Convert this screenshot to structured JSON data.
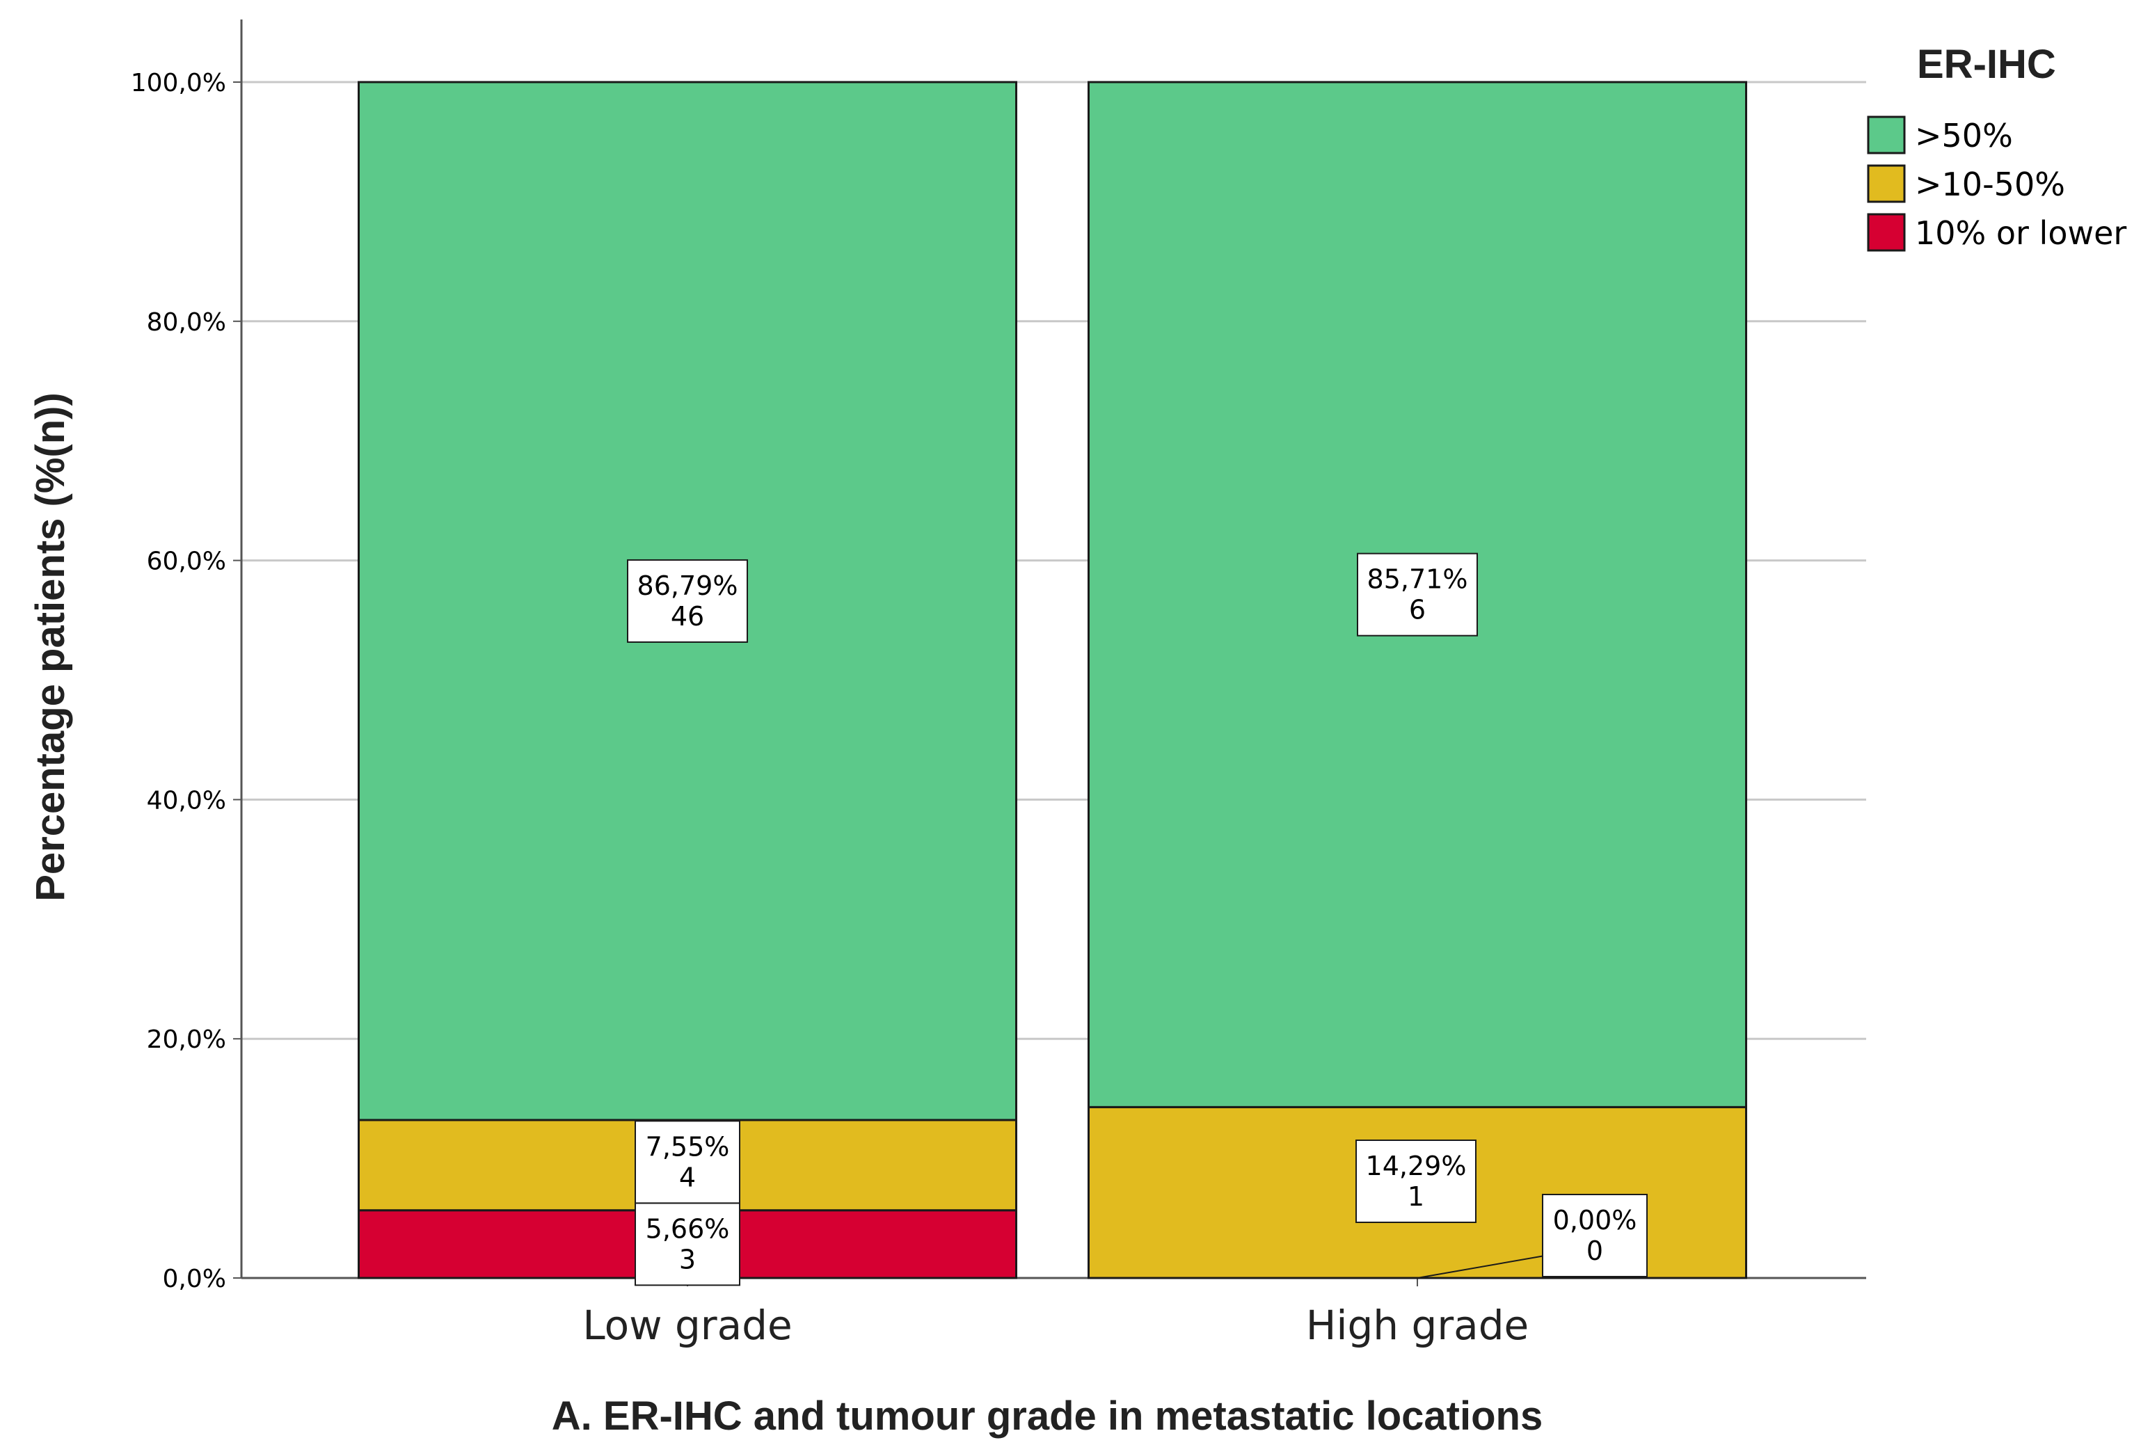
{
  "chart_data": {
    "type": "bar",
    "stacked": true,
    "percent": true,
    "title": "A. ER-IHC and tumour grade in metastatic locations",
    "xlabel": "",
    "ylabel": "Percentage patients (%(n))",
    "ylim": [
      0,
      100
    ],
    "yticks": [
      "0,0%",
      "20,0%",
      "40,0%",
      "60,0%",
      "80,0%",
      "100,0%"
    ],
    "grid": true,
    "categories": [
      "Low grade",
      "High grade"
    ],
    "legend": {
      "title": "ER-IHC",
      "placement": "top-right"
    },
    "series": [
      {
        "name": "10% or lower",
        "color": "#d60032",
        "values": [
          5.66,
          0.0
        ],
        "labels": [
          "5,66%",
          "0,00%"
        ],
        "counts": [
          "3",
          "0"
        ]
      },
      {
        "name": ">10-50%",
        "color": "#e1bb1f",
        "values": [
          7.55,
          14.29
        ],
        "labels": [
          "7,55%",
          "14,29%"
        ],
        "counts": [
          "4",
          "1"
        ]
      },
      {
        "name": ">50%",
        "color": "#5cc98a",
        "values": [
          86.79,
          85.71
        ],
        "labels": [
          "86,79%",
          "85,71%"
        ],
        "counts": [
          "46",
          "6"
        ]
      }
    ]
  }
}
